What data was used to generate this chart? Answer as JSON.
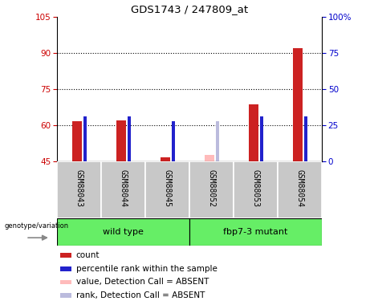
{
  "title": "GDS1743 / 247809_at",
  "samples": [
    "GSM88043",
    "GSM88044",
    "GSM88045",
    "GSM88052",
    "GSM88053",
    "GSM88054"
  ],
  "groups": [
    {
      "name": "wild type",
      "indices": [
        0,
        1,
        2
      ]
    },
    {
      "name": "fbp7-3 mutant",
      "indices": [
        3,
        4,
        5
      ]
    }
  ],
  "ylim": [
    45,
    105
  ],
  "yticks_left": [
    45,
    60,
    75,
    90,
    105
  ],
  "yticks_right": [
    0,
    25,
    50,
    75,
    100
  ],
  "ytick_right_labels": [
    "0",
    "25",
    "50",
    "75",
    "100%"
  ],
  "ylabel_left_color": "#CC0000",
  "ylabel_right_color": "#0000CC",
  "grid_values": [
    60,
    75,
    90
  ],
  "bar_bottom": 45,
  "count_values": [
    61.5,
    62.0,
    46.5,
    47.5,
    68.5,
    92.0
  ],
  "count_absent": [
    false,
    false,
    false,
    true,
    false,
    false
  ],
  "rank_values": [
    63.5,
    63.5,
    61.5,
    61.5,
    63.5,
    63.5
  ],
  "rank_absent": [
    false,
    false,
    false,
    true,
    false,
    false
  ],
  "count_color": "#CC2222",
  "count_absent_color": "#FFBBBB",
  "rank_color": "#2222CC",
  "rank_absent_color": "#BBBBDD",
  "sample_bg": "#C8C8C8",
  "group_bg": "#66EE66",
  "legend_items": [
    {
      "label": "count",
      "color": "#CC2222"
    },
    {
      "label": "percentile rank within the sample",
      "color": "#2222CC"
    },
    {
      "label": "value, Detection Call = ABSENT",
      "color": "#FFBBBB"
    },
    {
      "label": "rank, Detection Call = ABSENT",
      "color": "#BBBBDD"
    }
  ]
}
